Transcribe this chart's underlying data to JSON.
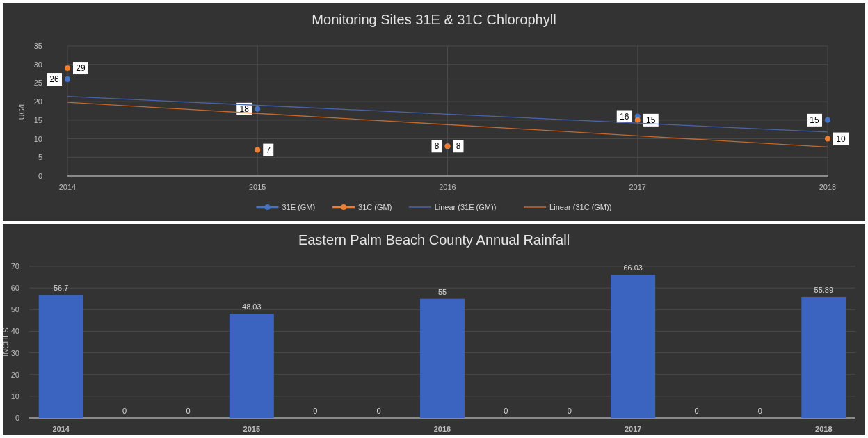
{
  "chart_data": [
    {
      "type": "line",
      "title": "Monitoring Sites 31E & 31C Chlorophyll",
      "ylabel": "UG/L",
      "x": [
        2014,
        2015,
        2016,
        2017,
        2018
      ],
      "xlim": [
        2014,
        2018
      ],
      "xticks": [
        2014,
        2015,
        2016,
        2017,
        2018
      ],
      "ylim": [
        0,
        35
      ],
      "yticks": [
        0,
        5,
        10,
        15,
        20,
        25,
        30,
        35
      ],
      "grid": true,
      "legend": "bottom",
      "series": [
        {
          "name": "31E (GM)",
          "type": "scatter",
          "marker": "circle",
          "color": "#4472c4",
          "values": [
            26,
            18,
            8,
            16,
            15
          ],
          "value_labels": [
            "26",
            "18",
            "8",
            "16",
            "15"
          ]
        },
        {
          "name": "31C (GM)",
          "type": "scatter",
          "marker": "circle",
          "color": "#ed7d31",
          "values": [
            29,
            7,
            8,
            15,
            10
          ],
          "value_labels": [
            "29",
            "7",
            "8",
            "15",
            "10"
          ]
        },
        {
          "name": "Linear (31E (GM))",
          "color": "#4a64b0",
          "values": [
            21.4,
            19.0,
            16.6,
            14.2,
            11.8
          ]
        },
        {
          "name": "Linear (31C (GM))",
          "color": "#c8682a",
          "values": [
            19.8,
            16.8,
            13.8,
            10.8,
            7.8
          ]
        }
      ]
    },
    {
      "type": "bar",
      "title": "Eastern Palm Beach County Annual Rainfall",
      "ylabel": "INCHES",
      "categories": [
        "2014",
        null,
        null,
        "2015",
        null,
        null,
        "2016",
        null,
        null,
        "2017",
        null,
        null,
        "2018"
      ],
      "values": [
        56.7,
        0,
        0,
        48.03,
        0,
        0,
        55,
        0,
        0,
        66.03,
        0,
        0,
        55.89
      ],
      "color": "#3a64bf",
      "ylim": [
        0,
        70
      ],
      "yticks": [
        0,
        10,
        20,
        30,
        40,
        50,
        60,
        70
      ],
      "grid": "y",
      "data_labels": true
    }
  ]
}
